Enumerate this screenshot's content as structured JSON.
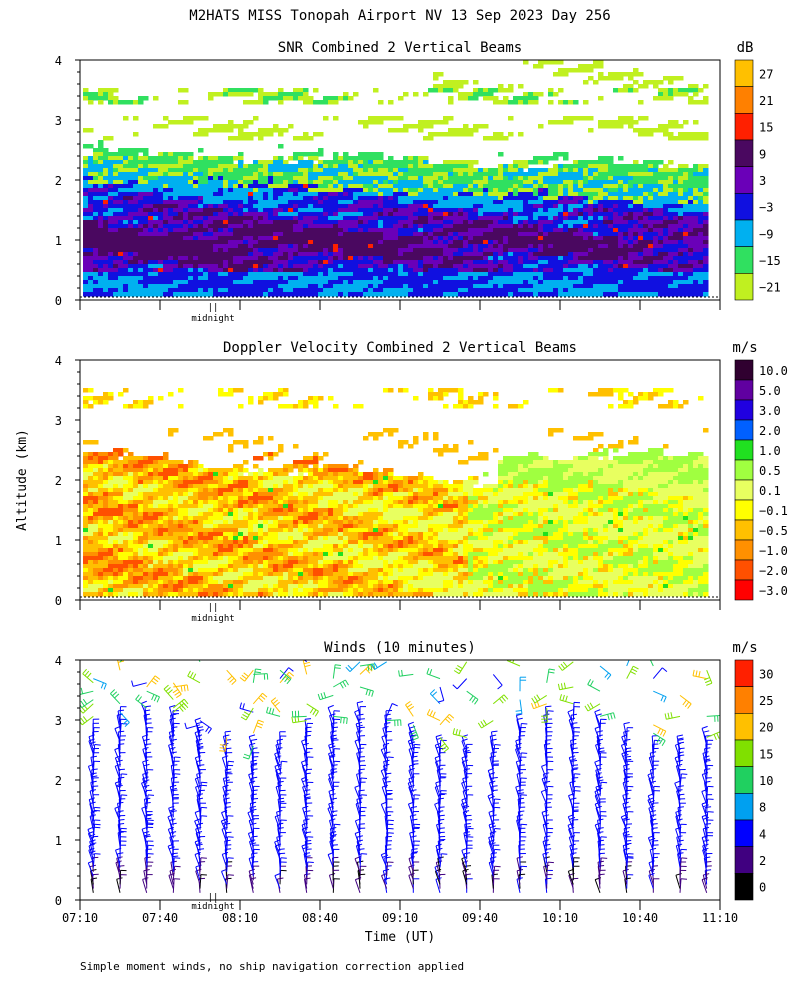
{
  "title": "M2HATS MISS Tonopah Airport NV  13 Sep 2023 Day 256",
  "ylabel": "Altitude (km)",
  "xlabel": "Time (UT)",
  "footnote": "Simple moment winds, no ship navigation correction applied",
  "midnight_label": "midnight",
  "midnight_marker": "||",
  "chart_data": [
    {
      "type": "heatmap",
      "title": "SNR Combined 2 Vertical Beams",
      "unit": "dB",
      "ylim": [
        0,
        4
      ],
      "yticks": [
        "0",
        "1",
        "2",
        "3",
        "4"
      ],
      "xlim": [
        "07:10",
        "11:10"
      ],
      "colorbar": {
        "labels": [
          "27",
          "21",
          "15",
          "9",
          "3",
          "−3",
          "−9",
          "−15",
          "−21"
        ],
        "colors": [
          "#ffc000",
          "#ff8000",
          "#ff2000",
          "#4a0860",
          "#6a00b8",
          "#1010e0",
          "#00b0f0",
          "#30e060",
          "#c0f020"
        ]
      },
      "layers": {
        "top_layer_km": [
          3.3,
          4.0
        ],
        "sparse_above_km": 2.5,
        "strong_band_km": [
          0.5,
          2.0
        ]
      }
    },
    {
      "type": "heatmap",
      "title": "Doppler Velocity Combined 2 Vertical Beams",
      "unit": "m/s",
      "ylim": [
        0,
        4
      ],
      "yticks": [
        "0",
        "1",
        "2",
        "3",
        "4"
      ],
      "xlim": [
        "07:10",
        "11:10"
      ],
      "colorbar": {
        "labels": [
          "10.0",
          "5.0",
          "3.0",
          "2.0",
          "1.0",
          "0.5",
          "0.1",
          "−0.1",
          "−0.5",
          "−1.0",
          "−2.0",
          "−3.0"
        ],
        "colors": [
          "#300030",
          "#6000a0",
          "#2000e0",
          "#0060ff",
          "#20e020",
          "#a0ff40",
          "#e8ff60",
          "#ffff00",
          "#ffc000",
          "#ff9000",
          "#ff5000",
          "#ff0000"
        ]
      }
    },
    {
      "type": "scatter",
      "title": "Winds (10 minutes)",
      "unit": "m/s",
      "ylim": [
        0,
        4
      ],
      "yticks": [
        "0",
        "1",
        "2",
        "3",
        "4"
      ],
      "xlim": [
        "07:10",
        "11:10"
      ],
      "xticks": [
        "07:10",
        "07:40",
        "08:10",
        "08:40",
        "09:10",
        "09:40",
        "10:10",
        "10:40",
        "11:10"
      ],
      "colorbar": {
        "labels": [
          "30",
          "25",
          "20",
          "15",
          "10",
          "8",
          "4",
          "2",
          "0"
        ],
        "colors": [
          "#ff2000",
          "#ff8000",
          "#ffc000",
          "#80e000",
          "#20d060",
          "#00a0f0",
          "#0000ff",
          "#400080",
          "#000000"
        ]
      },
      "profile_times": [
        "07:15",
        "07:25",
        "07:35",
        "07:45",
        "07:55",
        "08:05",
        "08:15",
        "08:25",
        "08:35",
        "08:45",
        "08:55",
        "09:05",
        "09:15",
        "09:25",
        "09:35",
        "09:45",
        "09:55",
        "10:05",
        "10:15",
        "10:25",
        "10:35",
        "10:45",
        "10:55",
        "11:05"
      ],
      "dense_top_km": 2.8
    }
  ]
}
